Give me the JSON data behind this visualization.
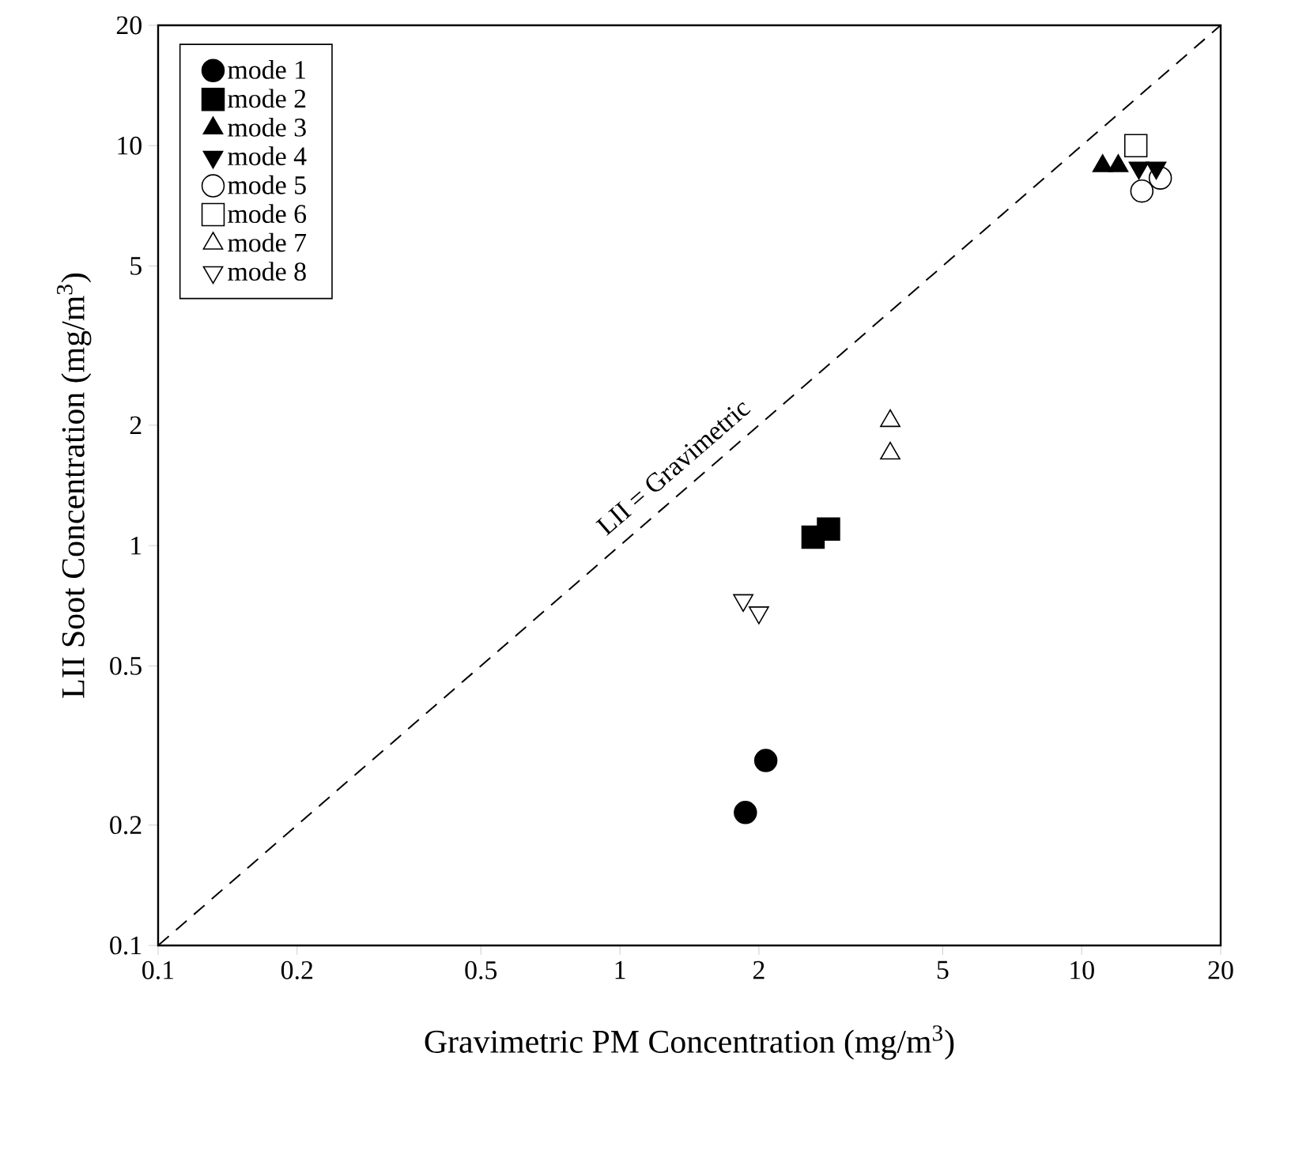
{
  "chart_data": {
    "type": "scatter",
    "xlabel": "Gravimetric PM Concentration (mg/m$^{3}$)",
    "ylabel": "LII Soot Concentration (mg/m$^{3}$)",
    "log": "xy",
    "xlim": [
      0.1,
      20
    ],
    "ylim": [
      0.1,
      20
    ],
    "xticks": [
      0.1,
      0.2,
      0.5,
      1,
      2,
      5,
      10,
      20
    ],
    "yticks": [
      0.1,
      0.2,
      0.5,
      1,
      2,
      5,
      10,
      20
    ],
    "grid": false,
    "legend": "top left",
    "series": [
      {
        "name": "mode 1",
        "color": "#000000",
        "marker": "circle",
        "x": [
          1.87,
          2.07
        ],
        "values": [
          0.215,
          0.29
        ]
      },
      {
        "name": "mode 2",
        "color": "#000000",
        "marker": "square",
        "x": [
          2.62,
          2.83
        ],
        "values": [
          1.05,
          1.1
        ]
      },
      {
        "name": "mode 3",
        "color": "#000000",
        "marker": "triangle",
        "x": [
          11.1,
          12.0
        ],
        "values": [
          8.9,
          8.9
        ]
      },
      {
        "name": "mode 4",
        "color": "#000000",
        "marker": "triangle-down",
        "x": [
          13.3,
          14.5
        ],
        "values": [
          8.8,
          8.8
        ]
      },
      {
        "name": "mode 5",
        "color": "#000000",
        "marker": "circle-open",
        "x": [
          13.5,
          14.8
        ],
        "values": [
          7.7,
          8.3
        ]
      },
      {
        "name": "mode 6",
        "color": "#000000",
        "marker": "square-open",
        "x": [
          13.1
        ],
        "values": [
          10
        ]
      },
      {
        "name": "mode 7",
        "color": "#000000",
        "marker": "triangle-open",
        "x": [
          3.85,
          3.85
        ],
        "values": [
          2.05,
          1.7
        ]
      },
      {
        "name": "mode 8",
        "color": "#000000",
        "marker": "triangle-down-open",
        "x": [
          1.85,
          2.0
        ],
        "values": [
          0.73,
          0.68
        ]
      },
      {
        "name": "LII = Gravimetric",
        "type": "line",
        "line_style": "dashed",
        "color": "#000000",
        "x": [
          0.1,
          20
        ],
        "values": [
          0.1,
          20
        ]
      }
    ]
  }
}
